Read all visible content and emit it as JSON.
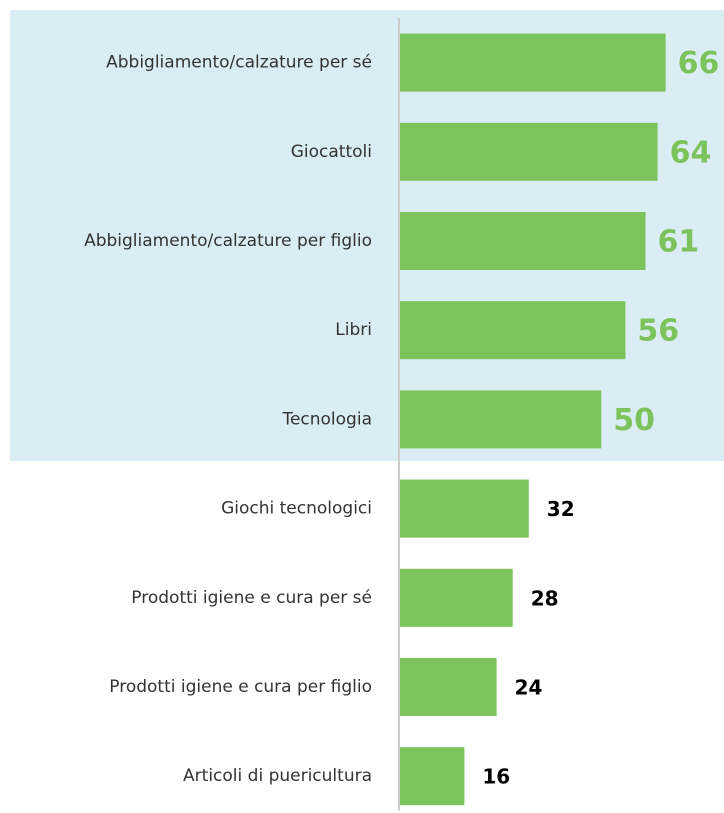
{
  "chart_data": {
    "type": "hbar",
    "categories": [
      "Abbigliamento/calzature per sé",
      "Giocattoli",
      "Abbigliamento/calzature per figlio",
      "Libri",
      "Tecnologia",
      "Giochi tecnologici",
      "Prodotti igiene e cura per sé",
      "Prodotti igiene e cura per figlio",
      "Articoli di puericultura"
    ],
    "values": [
      66,
      64,
      61,
      56,
      50,
      32,
      28,
      24,
      16
    ],
    "color": "#7dc35b",
    "xlim": [
      0,
      80
    ],
    "highlight": {
      "count": 5,
      "background": "#daedf4",
      "label_color": "#7dc35b"
    }
  }
}
